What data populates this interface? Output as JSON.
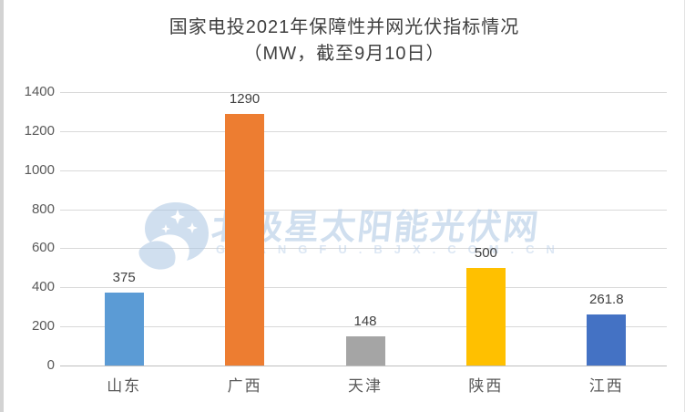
{
  "title": {
    "line1": "国家电投2021年保障性并网光伏指标情况",
    "line2": "（MW，截至9月10日）"
  },
  "chart_data": {
    "type": "bar",
    "title": "国家电投2021年保障性并网光伏指标情况（MW，截至9月10日）",
    "unit": "MW",
    "categories": [
      "山东",
      "广西",
      "天津",
      "陕西",
      "江西"
    ],
    "values": [
      375,
      1290,
      148,
      500,
      261.8
    ],
    "value_labels": [
      "375",
      "1290",
      "148",
      "500",
      "261.8"
    ],
    "bar_colors": [
      "#5B9BD5",
      "#ED7D31",
      "#A5A5A5",
      "#FFC000",
      "#4472C4"
    ],
    "xlabel": "",
    "ylabel": "",
    "ylim": [
      0,
      1400
    ],
    "yticks": [
      0,
      200,
      400,
      600,
      800,
      1000,
      1200,
      1400
    ],
    "grid": "horizontal",
    "legend": "none"
  },
  "watermark": {
    "logo": "polar-star-logo",
    "text": "北极星太阳能光伏网",
    "subtext": "GUANGFU.BJX.COM.CN",
    "color": "#AAC4E2"
  },
  "colors": {
    "background": "#FFFFFF",
    "gridline": "#D9D9D9",
    "axis_line": "#BFBFBF",
    "tick_label": "#595959",
    "category_label": "#595959",
    "data_label": "#404040",
    "title_text": "#3F3F3F"
  }
}
